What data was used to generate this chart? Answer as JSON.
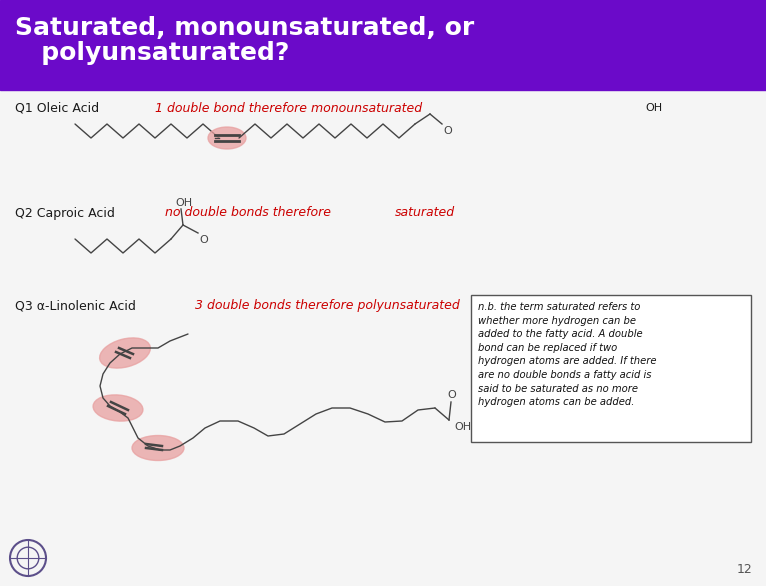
{
  "title_line1": "Saturated, monounsaturated, or",
  "title_line2": "   polyunsaturated?",
  "title_bg_color": "#6B0AC9",
  "title_text_color": "#FFFFFF",
  "bg_color": "#F5F5F5",
  "slide_number": "12",
  "q1_label": "Q1 Oleic Acid",
  "q1_annotation": "1 double bond therefore monounsaturated",
  "q1_oh": "OH",
  "q2_label": "Q2 Caproic Acid",
  "q2_annotation_left": "no double bonds therefore",
  "q2_annotation_right": "saturated",
  "q3_label": "Q3 α-Linolenic Acid",
  "q3_annotation": "3 double bonds therefore polyunsaturated",
  "nb_text": "n.b. the term saturated refers to\nwhether more hydrogen can be\nadded to the fatty acid. A double\nbond can be replaced if two\nhydrogen atoms are added. If there\nare no double bonds a fatty acid is\nsaid to be saturated as no more\nhydrogen atoms can be added.",
  "annotation_color": "#CC0000",
  "label_color": "#1a1a1a",
  "chain_color": "#444444",
  "highlight_color": "#E8A0A0",
  "nb_font_size": 7.2,
  "label_fontsize": 9,
  "title_fontsize": 18
}
